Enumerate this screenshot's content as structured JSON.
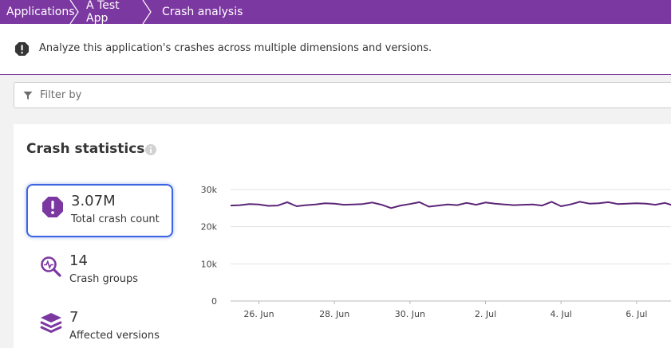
{
  "breadcrumb": {
    "items": [
      {
        "label": "Applications"
      },
      {
        "label": "A Test App"
      },
      {
        "label": "Crash analysis"
      }
    ]
  },
  "banner": {
    "icon": "alert-octagon-icon",
    "text": "Analyze this application's crashes across multiple dimensions and versions."
  },
  "filter": {
    "icon": "funnel-icon",
    "placeholder": "Filter by",
    "value": ""
  },
  "colors": {
    "accent": "#7c38a1",
    "selection": "#3b64e0",
    "line": "#5b2577"
  },
  "crash_statistics": {
    "title": "Crash statistics",
    "stats": [
      {
        "value": "3.07M",
        "label": "Total crash count",
        "icon": "crash-alert-icon",
        "selected": true
      },
      {
        "value": "14",
        "label": "Crash groups",
        "icon": "magnifier-pulse-icon",
        "selected": false
      },
      {
        "value": "7",
        "label": "Affected versions",
        "icon": "layers-icon",
        "selected": false
      }
    ]
  },
  "chart_data": {
    "type": "line",
    "title": "",
    "xlabel": "",
    "ylabel": "",
    "ylim": [
      0,
      30000
    ],
    "y_ticks": [
      "0",
      "10k",
      "20k",
      "30k"
    ],
    "y_tick_values": [
      0,
      10000,
      20000,
      30000
    ],
    "x_tick_labels": [
      "26. Jun",
      "28. Jun",
      "30. Jun",
      "2. Jul",
      "4. Jul",
      "6. Jul"
    ],
    "x_tick_index": [
      3,
      11,
      19,
      27,
      35,
      43
    ],
    "grid": true,
    "series": [
      {
        "values": [
          25700,
          25800,
          26100,
          26000,
          25600,
          25700,
          26600,
          25500,
          25800,
          26000,
          26300,
          26200,
          25900,
          26000,
          26100,
          26500,
          25900,
          25000,
          25700,
          26100,
          26600,
          25400,
          25700,
          26000,
          25800,
          26400,
          25900,
          26500,
          26200,
          26000,
          25800,
          25900,
          26000,
          25700,
          26700,
          25500,
          26000,
          26700,
          26200,
          26300,
          26600,
          26100,
          26200,
          26300,
          26200,
          25900,
          26400,
          25600,
          25800
        ]
      }
    ]
  }
}
